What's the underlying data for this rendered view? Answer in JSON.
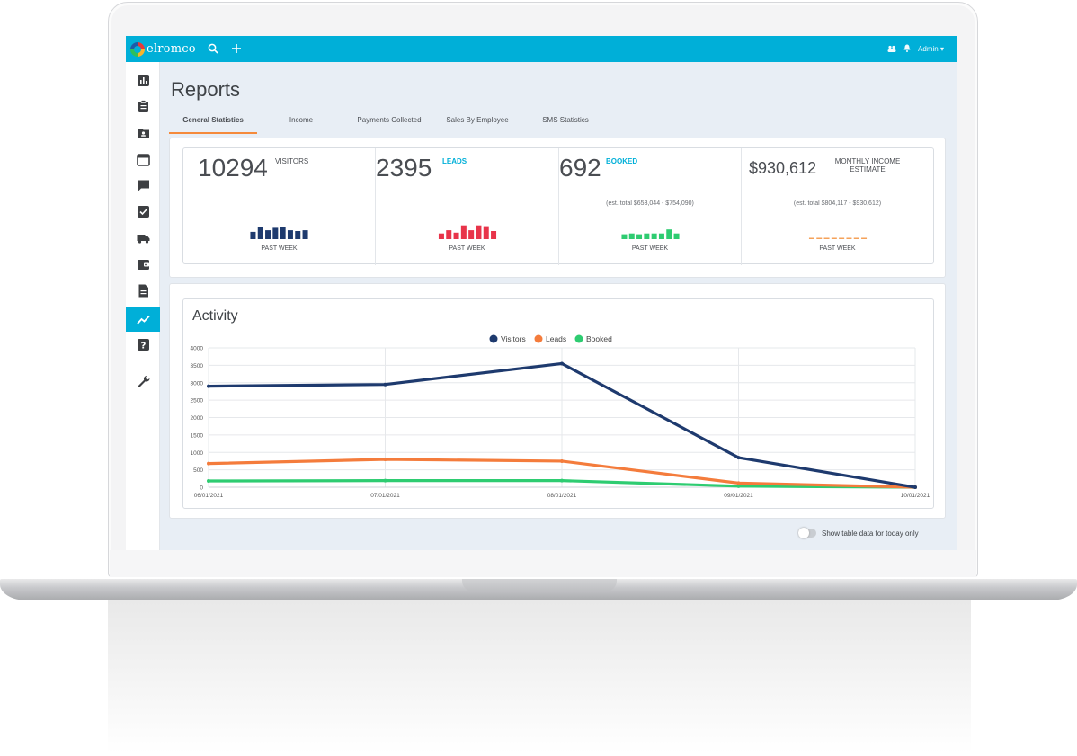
{
  "topbar": {
    "logo_text": "elromco",
    "user_label": "Admin ▾",
    "icons": [
      "search-icon",
      "plus-icon",
      "users-icon",
      "bell-icon"
    ]
  },
  "sidebar": {
    "items": [
      {
        "icon": "bar-chart-icon"
      },
      {
        "icon": "clipboard-icon"
      },
      {
        "icon": "contacts-folder-icon"
      },
      {
        "icon": "calendar-icon"
      },
      {
        "icon": "chat-icon"
      },
      {
        "icon": "checkbox-icon"
      },
      {
        "icon": "truck-icon"
      },
      {
        "icon": "wallet-icon"
      },
      {
        "icon": "document-icon"
      },
      {
        "icon": "trend-icon",
        "active": true
      },
      {
        "icon": "help-icon"
      },
      {
        "icon": "wrench-icon"
      }
    ]
  },
  "page": {
    "title": "Reports",
    "tabs": [
      {
        "label": "General Statistics",
        "active": true
      },
      {
        "label": "Income"
      },
      {
        "label": "Payments Collected"
      },
      {
        "label": "Sales By Employee"
      },
      {
        "label": "SMS Statistics"
      }
    ]
  },
  "stats": [
    {
      "value": "10294",
      "label": "VISITORS",
      "sub": "",
      "caption": "PAST WEEK",
      "color": "#1e3a6e",
      "bars": [
        0.45,
        0.75,
        0.55,
        0.7,
        0.75,
        0.55,
        0.5,
        0.55
      ]
    },
    {
      "value": "2395",
      "label": "LEADS",
      "sub": "",
      "caption": "PAST WEEK",
      "color": "#e8344a",
      "bars": [
        0.35,
        0.55,
        0.4,
        0.85,
        0.55,
        0.85,
        0.8,
        0.5
      ]
    },
    {
      "value": "692",
      "label": "BOOKED",
      "sub": "(est. total $653,044 - $754,090)",
      "caption": "PAST WEEK",
      "color": "#2ecc71",
      "bars": [
        0.3,
        0.35,
        0.3,
        0.35,
        0.35,
        0.35,
        0.6,
        0.35
      ]
    },
    {
      "value": "$930,612",
      "label": "MONTHLY INCOME ESTIMATE",
      "sub": "(est. total $804,117 - $930,612)",
      "caption": "PAST WEEK",
      "color": "#f5a25a",
      "bars": [
        0.06,
        0.06,
        0.06,
        0.06,
        0.06,
        0.06,
        0.06,
        0.06
      ]
    }
  ],
  "activity": {
    "title": "Activity"
  },
  "toggle": {
    "label": "Show table data for today only",
    "on": false
  },
  "chart_data": {
    "type": "line",
    "title": "Activity",
    "x": [
      "06/01/2021",
      "07/01/2021",
      "08/01/2021",
      "09/01/2021",
      "10/01/2021"
    ],
    "yticks": [
      0,
      500,
      1000,
      1500,
      2000,
      2500,
      3000,
      3500,
      4000
    ],
    "ylim": [
      0,
      4000
    ],
    "grid": true,
    "legend_position": "top-center",
    "series": [
      {
        "name": "Visitors",
        "color": "#1e3a6e",
        "values": [
          2900,
          2950,
          3550,
          850,
          0
        ]
      },
      {
        "name": "Leads",
        "color": "#f47c3c",
        "values": [
          680,
          800,
          750,
          120,
          0
        ]
      },
      {
        "name": "Booked",
        "color": "#2ecc71",
        "values": [
          180,
          190,
          190,
          30,
          0
        ]
      }
    ]
  }
}
